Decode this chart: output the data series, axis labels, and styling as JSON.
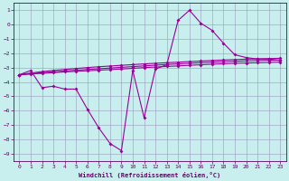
{
  "xlabel": "Windchill (Refroidissement éolien,°C)",
  "background_color": "#c8eeee",
  "grid_color": "#9999bb",
  "line_color": "#990099",
  "x": [
    0,
    1,
    2,
    3,
    4,
    5,
    6,
    7,
    8,
    9,
    10,
    11,
    12,
    13,
    14,
    15,
    16,
    17,
    18,
    19,
    20,
    21,
    22,
    23
  ],
  "wavy": [
    -3.5,
    -3.2,
    -4.4,
    -4.3,
    -4.5,
    -4.5,
    -5.9,
    -7.2,
    -8.3,
    -8.8,
    -3.2,
    -6.5,
    -3.1,
    -2.8,
    0.3,
    1.0,
    0.1,
    -0.4,
    -1.3,
    -2.1,
    -2.3,
    -2.4,
    -2.4,
    -2.5
  ],
  "straight1": [
    -3.5,
    -3.45,
    -3.4,
    -3.35,
    -3.3,
    -3.26,
    -3.22,
    -3.18,
    -3.14,
    -3.1,
    -3.05,
    -3.0,
    -2.96,
    -2.92,
    -2.88,
    -2.84,
    -2.8,
    -2.76,
    -2.73,
    -2.7,
    -2.68,
    -2.66,
    -2.64,
    -2.62
  ],
  "straight2": [
    -3.5,
    -3.42,
    -3.36,
    -3.3,
    -3.24,
    -3.18,
    -3.13,
    -3.08,
    -3.03,
    -2.98,
    -2.93,
    -2.88,
    -2.83,
    -2.78,
    -2.74,
    -2.7,
    -2.66,
    -2.62,
    -2.59,
    -2.56,
    -2.53,
    -2.51,
    -2.49,
    -2.47
  ],
  "straight3": [
    -3.5,
    -3.38,
    -3.28,
    -3.2,
    -3.13,
    -3.06,
    -3.0,
    -2.94,
    -2.89,
    -2.84,
    -2.79,
    -2.74,
    -2.7,
    -2.66,
    -2.62,
    -2.58,
    -2.54,
    -2.5,
    -2.47,
    -2.44,
    -2.41,
    -2.39,
    -2.37,
    -2.35
  ],
  "ylim": [
    -9.5,
    1.5
  ],
  "xlim": [
    -0.5,
    23.5
  ],
  "yticks": [
    1,
    0,
    -1,
    -2,
    -3,
    -4,
    -5,
    -6,
    -7,
    -8,
    -9
  ],
  "xticks": [
    0,
    1,
    2,
    3,
    4,
    5,
    6,
    7,
    8,
    9,
    10,
    11,
    12,
    13,
    14,
    15,
    16,
    17,
    18,
    19,
    20,
    21,
    22,
    23
  ]
}
